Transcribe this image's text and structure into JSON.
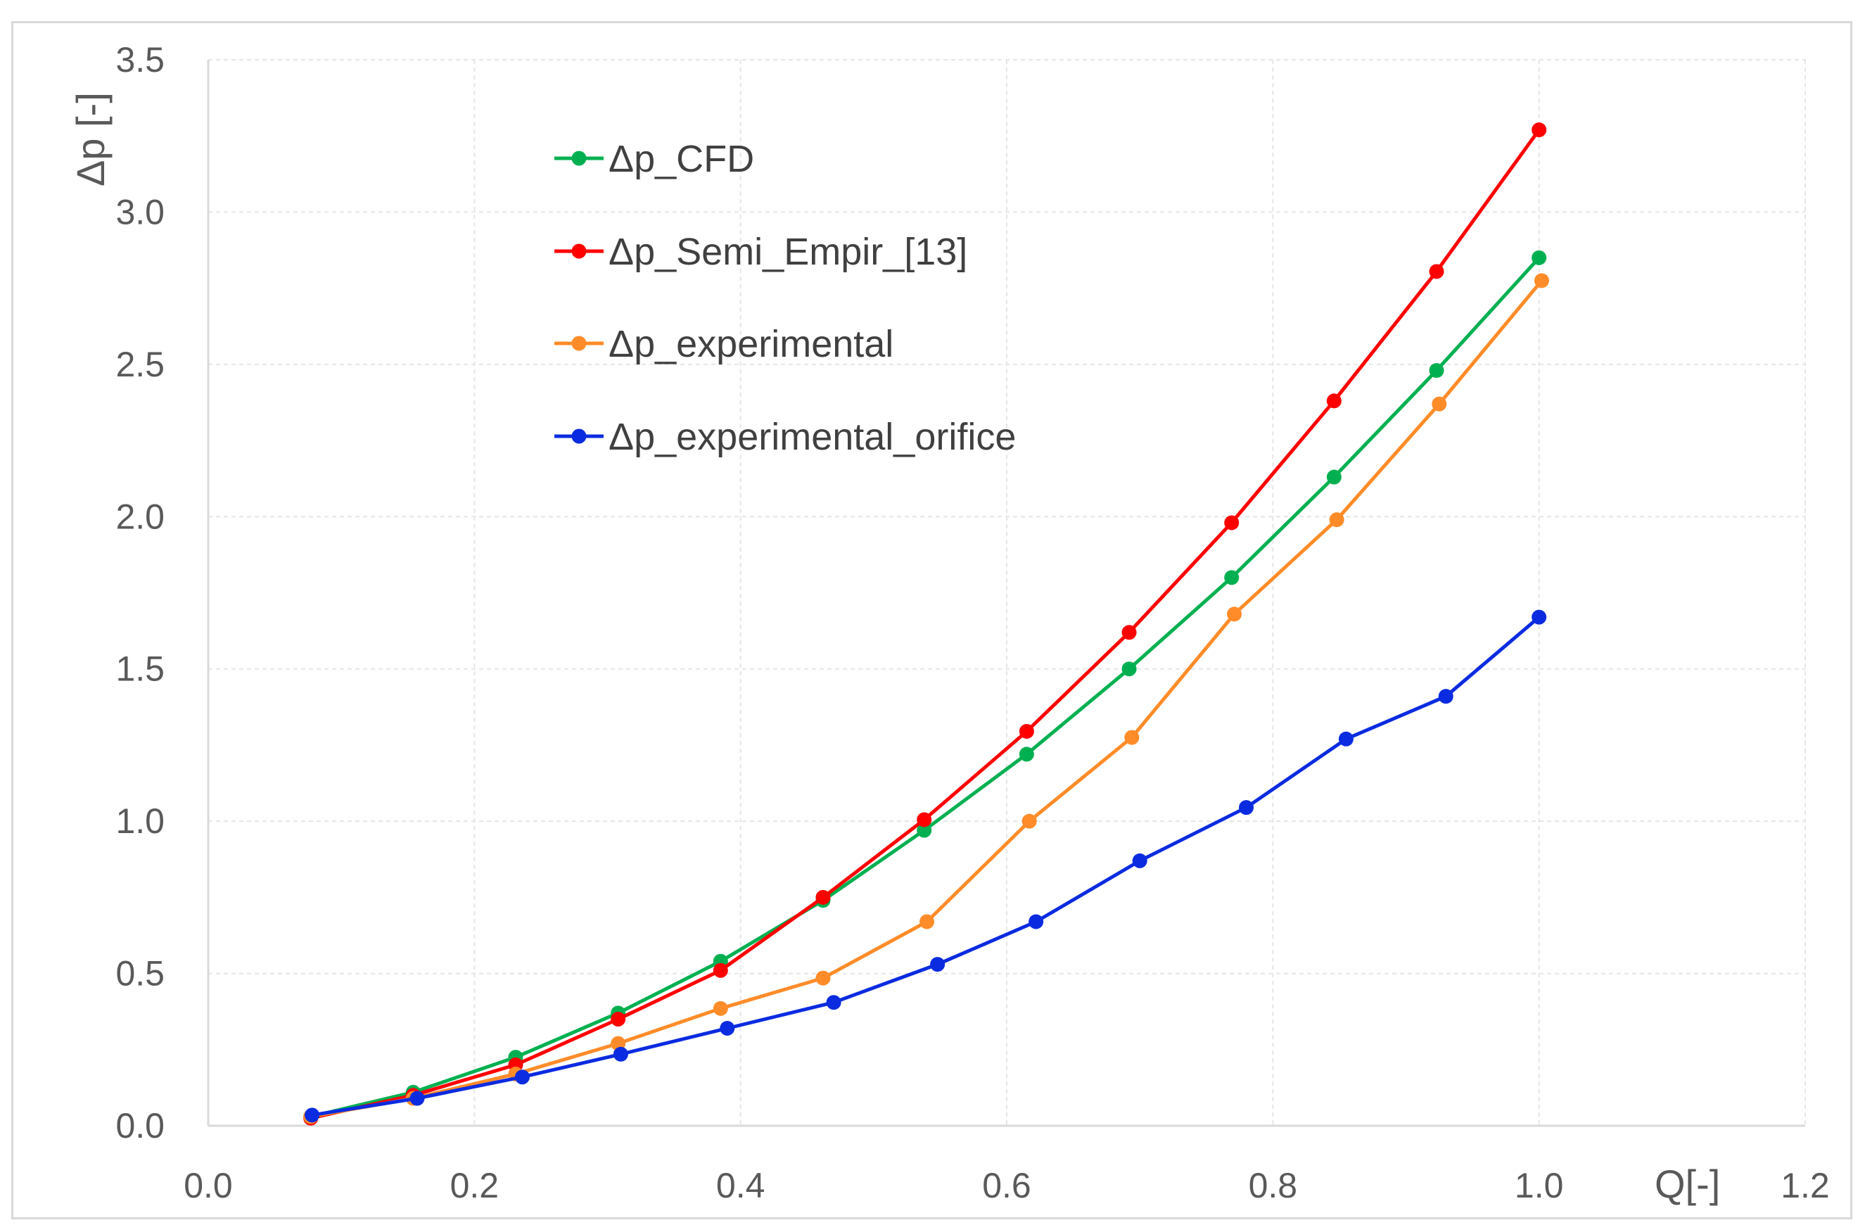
{
  "chart_data": {
    "type": "line",
    "title": "",
    "xlabel": "Q[-]",
    "ylabel": "Δp [-]",
    "xlim": [
      0.0,
      1.2
    ],
    "ylim": [
      0.0,
      3.5
    ],
    "xticks": [
      "0.0",
      "0.2",
      "0.4",
      "0.6",
      "0.8",
      "1.0",
      "1.2"
    ],
    "yticks": [
      "0.0",
      "0.5",
      "1.0",
      "1.5",
      "2.0",
      "2.5",
      "3.0",
      "3.5"
    ],
    "grid": true,
    "legend_position": "top-left",
    "series": [
      {
        "name": "Δp_CFD",
        "color": "#00b050",
        "x": [
          0.077,
          0.154,
          0.231,
          0.308,
          0.385,
          0.462,
          0.538,
          0.615,
          0.692,
          0.769,
          0.846,
          0.923,
          1.0
        ],
        "y": [
          0.03,
          0.11,
          0.225,
          0.37,
          0.54,
          0.74,
          0.97,
          1.22,
          1.5,
          1.8,
          2.13,
          2.48,
          2.85
        ]
      },
      {
        "name": "Δp_Semi_Empir_[13]",
        "color": "#ff0000",
        "x": [
          0.077,
          0.154,
          0.231,
          0.308,
          0.385,
          0.462,
          0.538,
          0.615,
          0.692,
          0.769,
          0.846,
          0.923,
          1.0
        ],
        "y": [
          0.025,
          0.1,
          0.2,
          0.35,
          0.51,
          0.75,
          1.005,
          1.295,
          1.62,
          1.98,
          2.38,
          2.805,
          3.27
        ]
      },
      {
        "name": "Δp_experimental",
        "color": "#ff8c29",
        "x": [
          0.077,
          0.154,
          0.231,
          0.308,
          0.385,
          0.462,
          0.54,
          0.617,
          0.694,
          0.771,
          0.848,
          0.925,
          1.002
        ],
        "y": [
          0.03,
          0.09,
          0.17,
          0.27,
          0.385,
          0.485,
          0.67,
          1.0,
          1.275,
          1.68,
          1.99,
          2.37,
          2.775
        ]
      },
      {
        "name": "Δp_experimental_orifice",
        "color": "#0b2be0",
        "x": [
          0.078,
          0.157,
          0.236,
          0.31,
          0.39,
          0.47,
          0.548,
          0.622,
          0.7,
          0.78,
          0.855,
          0.93,
          1.0
        ],
        "y": [
          0.035,
          0.09,
          0.16,
          0.235,
          0.32,
          0.405,
          0.53,
          0.67,
          0.87,
          1.045,
          1.27,
          1.41,
          1.67
        ]
      }
    ]
  }
}
